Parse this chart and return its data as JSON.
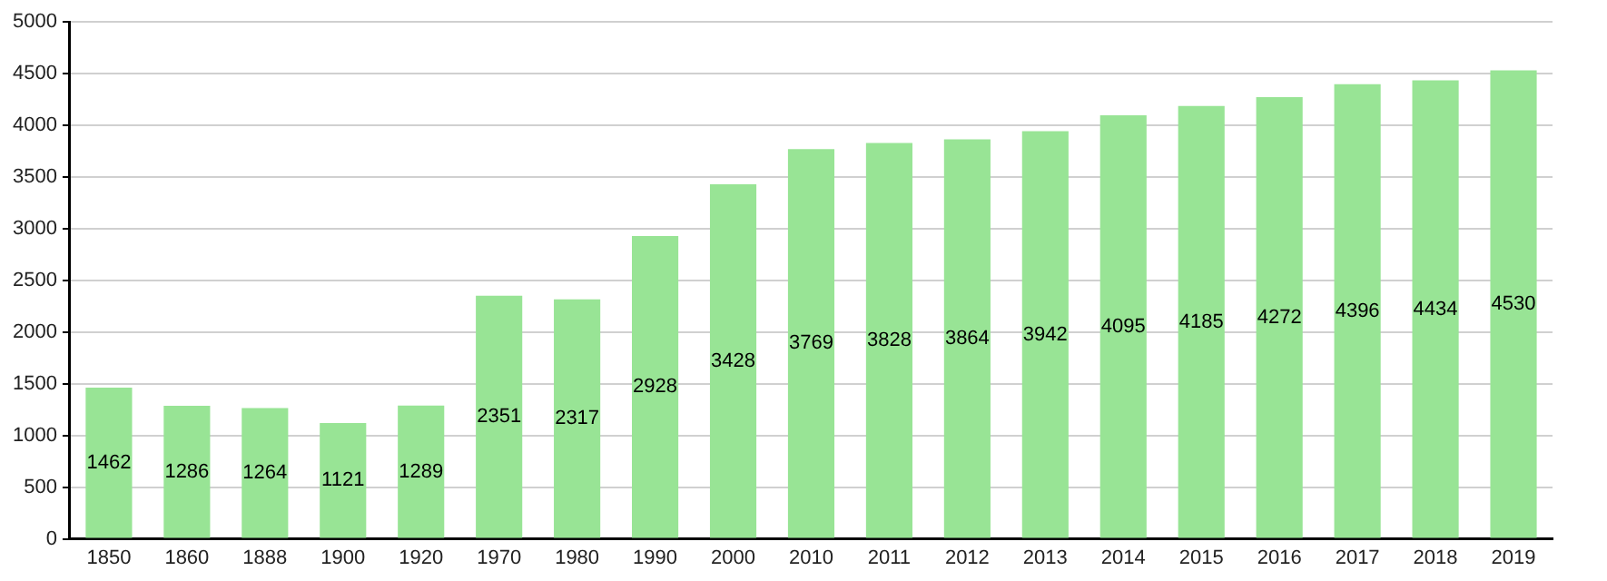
{
  "chart_data": {
    "type": "bar",
    "categories": [
      "1850",
      "1860",
      "1888",
      "1900",
      "1920",
      "1970",
      "1980",
      "1990",
      "2000",
      "2010",
      "2011",
      "2012",
      "2013",
      "2014",
      "2015",
      "2016",
      "2017",
      "2018",
      "2019"
    ],
    "values": [
      1462,
      1286,
      1264,
      1121,
      1289,
      2351,
      2317,
      2928,
      3428,
      3769,
      3828,
      3864,
      3942,
      4095,
      4185,
      4272,
      4396,
      4434,
      4530
    ],
    "color": "#98e495",
    "ylim": [
      0,
      5000
    ],
    "yticks": [
      0,
      500,
      1000,
      1500,
      2000,
      2500,
      3000,
      3500,
      4000,
      4500,
      5000
    ],
    "grid": "y",
    "legend": false,
    "data_labels": true
  }
}
